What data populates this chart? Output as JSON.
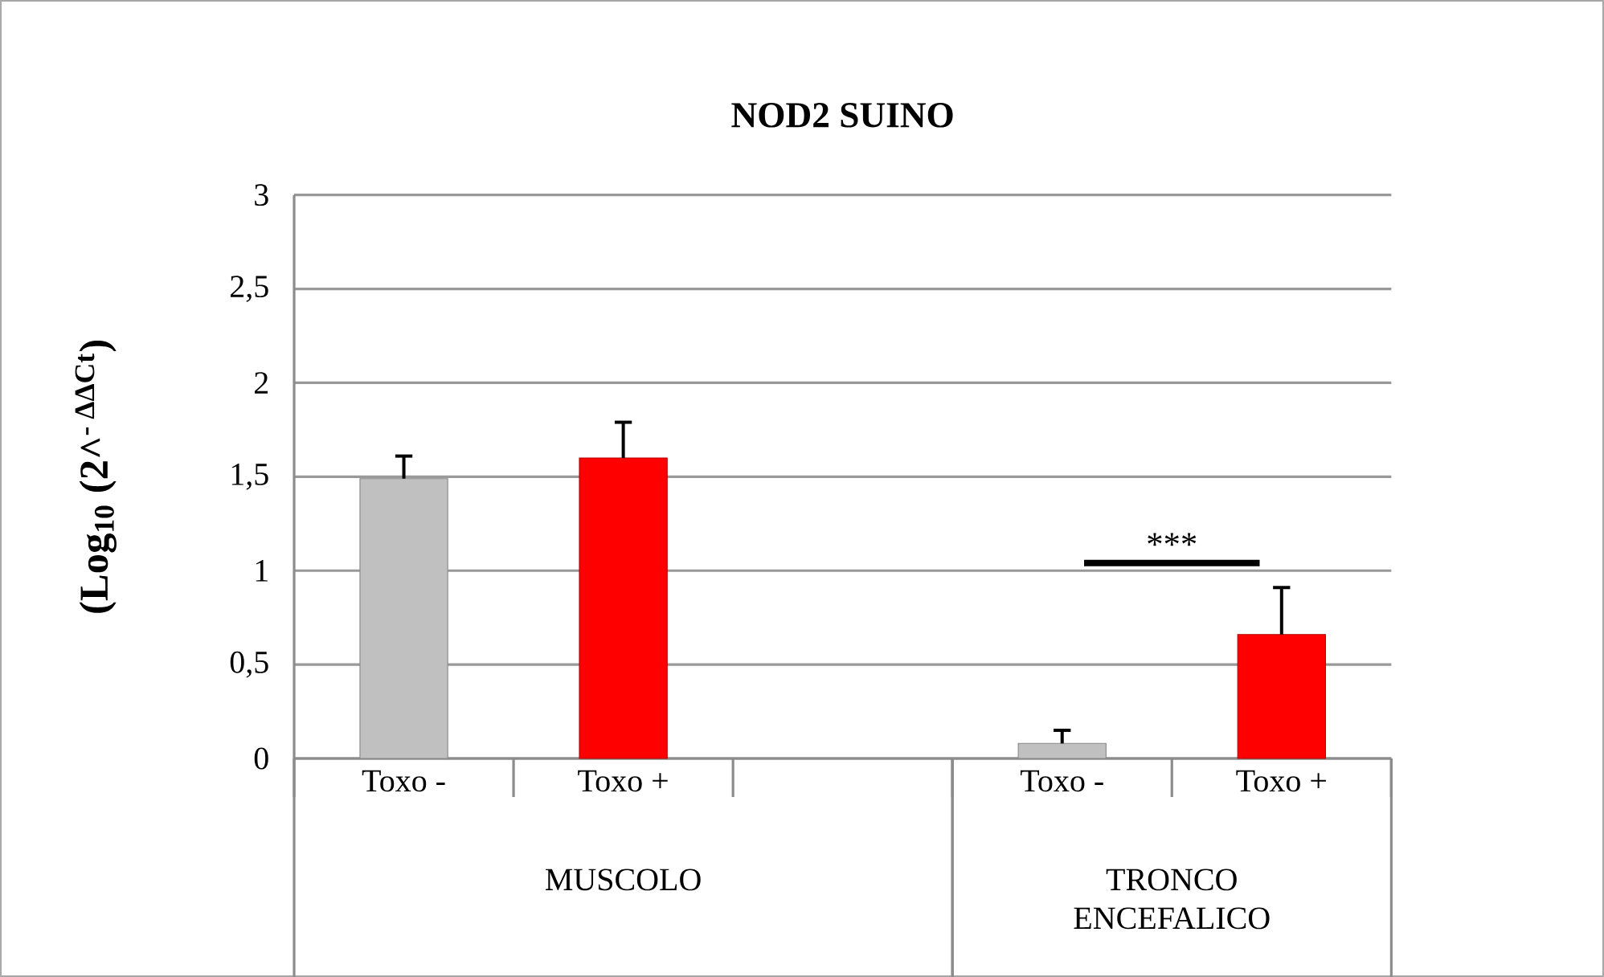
{
  "chart_data": {
    "type": "bar",
    "title": "NOD2 SUINO",
    "ylabel": "(Log$_{10}$ (2^$^{- ΔΔCt}$)",
    "categories": [
      "Toxo -",
      "Toxo +",
      null,
      "Toxo -",
      "Toxo +"
    ],
    "values": [
      1.49,
      1.6,
      null,
      0.08,
      0.66
    ],
    "errors": [
      0.12,
      0.19,
      null,
      0.07,
      0.25
    ],
    "colors": [
      "#c0c0c0",
      "#ff0000",
      null,
      "#c0c0c0",
      "#ff0000"
    ],
    "ylim": [
      0,
      3
    ],
    "yticks": [
      0,
      {
        "value": 0.5,
        "label": "0,5"
      },
      1,
      {
        "value": 1.5,
        "label": "1,5"
      },
      2,
      {
        "value": 2.5,
        "label": "2,5"
      },
      3
    ],
    "grid": "y",
    "annotations": [
      "***",
      "MUSCOLO",
      "TRONCO ENCEFALICO"
    ]
  }
}
